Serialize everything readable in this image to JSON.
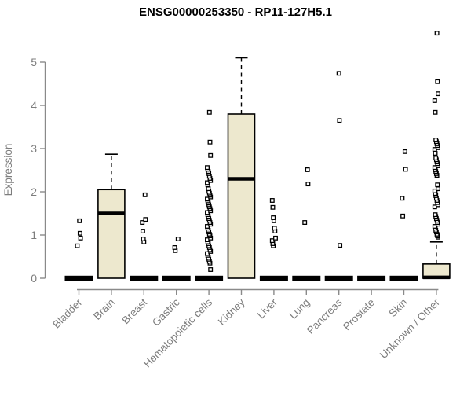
{
  "page": {
    "background": "#ffffff"
  },
  "chart_data": {
    "type": "boxplot",
    "title": "ENSG00000253350 - RP11-127H5.1",
    "ylabel": "Expression",
    "xlabel": "",
    "ylim": [
      0,
      5
    ],
    "yticks": [
      0,
      1,
      2,
      3,
      4,
      5
    ],
    "grid": "off",
    "legend": "none",
    "box_fill_color": "#EDE8CE",
    "axis_color": "#8A8A8A",
    "label_color": "#7D7D7D",
    "outlier_marker": "open-square",
    "categories": [
      "Bladder",
      "Brain",
      "Breast",
      "Gastric",
      "Hematopoietic cells",
      "Kidney",
      "Liver",
      "Lung",
      "Pancreas",
      "Prostate",
      "Skin",
      "Unknown / Other"
    ],
    "boxes": [
      {
        "category": "Bladder",
        "q1": 0,
        "median": 0,
        "q3": 0,
        "whisker_low": 0,
        "whisker_high": 0,
        "outliers": [
          0.75,
          0.93,
          1.04,
          1.33
        ]
      },
      {
        "category": "Brain",
        "q1": 0,
        "median": 1.5,
        "q3": 2.05,
        "whisker_low": 0,
        "whisker_high": 2.87,
        "outliers": []
      },
      {
        "category": "Breast",
        "q1": 0,
        "median": 0,
        "q3": 0,
        "whisker_low": 0,
        "whisker_high": 0,
        "outliers": [
          0.84,
          0.91,
          1.09,
          1.29,
          1.36,
          1.93
        ]
      },
      {
        "category": "Gastric",
        "q1": 0,
        "median": 0,
        "q3": 0,
        "whisker_low": 0,
        "whisker_high": 0,
        "outliers": [
          0.64,
          0.71,
          0.91
        ]
      },
      {
        "category": "Hematopoietic cells",
        "q1": 0,
        "median": 0,
        "q3": 0,
        "whisker_low": 0,
        "whisker_high": 0,
        "outliers": [
          0.2,
          0.35,
          0.39,
          0.44,
          0.48,
          0.53,
          0.57,
          0.62,
          0.66,
          0.71,
          0.75,
          0.8,
          0.84,
          0.89,
          0.93,
          0.98,
          1.02,
          1.07,
          1.11,
          1.16,
          1.2,
          1.25,
          1.29,
          1.34,
          1.38,
          1.43,
          1.47,
          1.52,
          1.56,
          1.61,
          1.65,
          1.7,
          1.74,
          1.79,
          1.83,
          1.88,
          1.92,
          1.97,
          2.01,
          2.07,
          2.16,
          2.21,
          2.26,
          2.31,
          2.36,
          2.42,
          2.47,
          2.52,
          2.56,
          2.84,
          3.15,
          3.84
        ]
      },
      {
        "category": "Kidney",
        "q1": 0,
        "median": 2.3,
        "q3": 3.8,
        "whisker_low": 0,
        "whisker_high": 5.1,
        "outliers": []
      },
      {
        "category": "Liver",
        "q1": 0,
        "median": 0,
        "q3": 0,
        "whisker_low": 0,
        "whisker_high": 0,
        "outliers": [
          0.75,
          0.8,
          0.87,
          0.93,
          1.09,
          1.16,
          1.33,
          1.4,
          1.64,
          1.8
        ]
      },
      {
        "category": "Lung",
        "q1": 0,
        "median": 0,
        "q3": 0,
        "whisker_low": 0,
        "whisker_high": 0,
        "outliers": [
          1.29,
          2.18,
          2.51
        ]
      },
      {
        "category": "Pancreas",
        "q1": 0,
        "median": 0,
        "q3": 0,
        "whisker_low": 0,
        "whisker_high": 0,
        "outliers": [
          0.76,
          3.65,
          4.74
        ]
      },
      {
        "category": "Prostate",
        "q1": 0,
        "median": 0,
        "q3": 0,
        "whisker_low": 0,
        "whisker_high": 0,
        "outliers": []
      },
      {
        "category": "Skin",
        "q1": 0,
        "median": 0,
        "q3": 0,
        "whisker_low": 0,
        "whisker_high": 0,
        "outliers": [
          1.44,
          1.85,
          2.52,
          2.93
        ]
      },
      {
        "category": "Unknown / Other",
        "q1": 0,
        "median": 0.02,
        "q3": 0.33,
        "whisker_low": 0,
        "whisker_high": 0.84,
        "outliers": [
          0.95,
          0.98,
          1.02,
          1.07,
          1.11,
          1.16,
          1.2,
          1.25,
          1.29,
          1.34,
          1.38,
          1.43,
          1.47,
          1.65,
          1.7,
          1.75,
          1.8,
          1.85,
          1.91,
          1.96,
          2.02,
          2.07,
          2.16,
          2.38,
          2.42,
          2.47,
          2.51,
          2.56,
          2.6,
          2.65,
          2.69,
          2.74,
          2.78,
          2.89,
          2.98,
          3.02,
          3.07,
          3.11,
          3.16,
          3.2,
          3.84,
          4.11,
          4.27,
          4.55,
          5.67
        ]
      }
    ]
  }
}
